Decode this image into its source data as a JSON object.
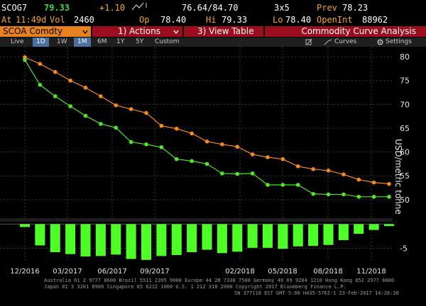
{
  "header": {
    "ticker": "SCOG7",
    "price": "79.33",
    "change": "+1.10",
    "change_icon": "arrow-up-icon",
    "range": "76.64/84.70",
    "size": "3x5",
    "prev_label": "Prev",
    "prev_value": "78.23",
    "at_label": "At",
    "time": "11:49d",
    "vol_label": "Vol",
    "vol_value": "2460",
    "op_label": "Op",
    "op_value": "78.40",
    "hi_label": "Hi",
    "hi_value": "79.33",
    "lo_label": "Lo",
    "lo_value": "78.40",
    "openint_label": "OpenInt",
    "openint_value": "88962"
  },
  "commandbar": {
    "security": "SCOA Comdty",
    "dropdown_icon": "chevron-down-icon",
    "action1": "1) Actions",
    "action3": "3) View Table",
    "title": "Commodity Curve Analysis"
  },
  "toolbar": {
    "live": "Live",
    "ranges": [
      "1D",
      "1W",
      "1M",
      "6M",
      "1Y",
      "5Y",
      "Custom"
    ],
    "selected": [
      "1D",
      "1M"
    ],
    "curves": "Curves",
    "settings": "Settings"
  },
  "chart_data": {
    "type": "line",
    "x_ticks": [
      "12/2016",
      "03/2017",
      "06/2017",
      "09/2017",
      "02/2018",
      "05/2018",
      "08/2018",
      "11/2018"
    ],
    "ylabel": "USD/metric tonne",
    "y_ticks": [
      80,
      75,
      70,
      65,
      60,
      55,
      50
    ],
    "ylim": [
      47,
      81.5
    ],
    "bars_ylim": [
      -8,
      0.5
    ],
    "bars_y_ticks": [
      "-5"
    ],
    "series": [
      {
        "color": "#f5881f",
        "values": [
          79.9,
          78.5,
          76.8,
          75.0,
          73.5,
          71.7,
          69.8,
          69.0,
          68.2,
          65.5,
          64.9,
          63.9,
          62.2,
          61.6,
          61.1,
          59.5,
          58.9,
          58.5,
          57.0,
          56.4,
          56.1,
          55.3,
          54.2,
          53.6,
          53.3
        ]
      },
      {
        "color": "#52e52a",
        "values": [
          79.33,
          74.1,
          71.7,
          69.6,
          67.6,
          65.9,
          65.1,
          62.1,
          61.6,
          61.0,
          58.5,
          58.1,
          57.5,
          55.5,
          55.4,
          55.5,
          53.1,
          53.1,
          53.1,
          51.2,
          51.1,
          51.1,
          50.6,
          50.6,
          50.6
        ]
      }
    ],
    "bars": {
      "color": "#4dff26",
      "values": [
        -0.6,
        -4.4,
        -5.8,
        -6.2,
        -6.7,
        -6.6,
        -6.3,
        -7.2,
        -7.4,
        -6.6,
        -6.4,
        -5.8,
        -5.3,
        -6.0,
        -5.7,
        -4.9,
        -4.9,
        -5.1,
        -4.6,
        -4.5,
        -4.3,
        -3.3,
        -2.0,
        -1.2,
        -0.4
      ]
    }
  },
  "footer": {
    "line1": "Australia 61 2 9777 8600 Brazil 5511 2395 9000 Europe 44 20 7330 7500 Germany 49 69 9204 1210 Hong Kong 852 2977 6000",
    "line2": "Japan 81 3 3201 8900          Singapore 65 6212 1000    U.S. 1 212 318 2000        Copyright 2017 Bloomberg Finance L.P.",
    "line3": "SN 377118 EST  GMT-5:00 H435-5762-1 23-Feb-2017 14:28:28"
  }
}
